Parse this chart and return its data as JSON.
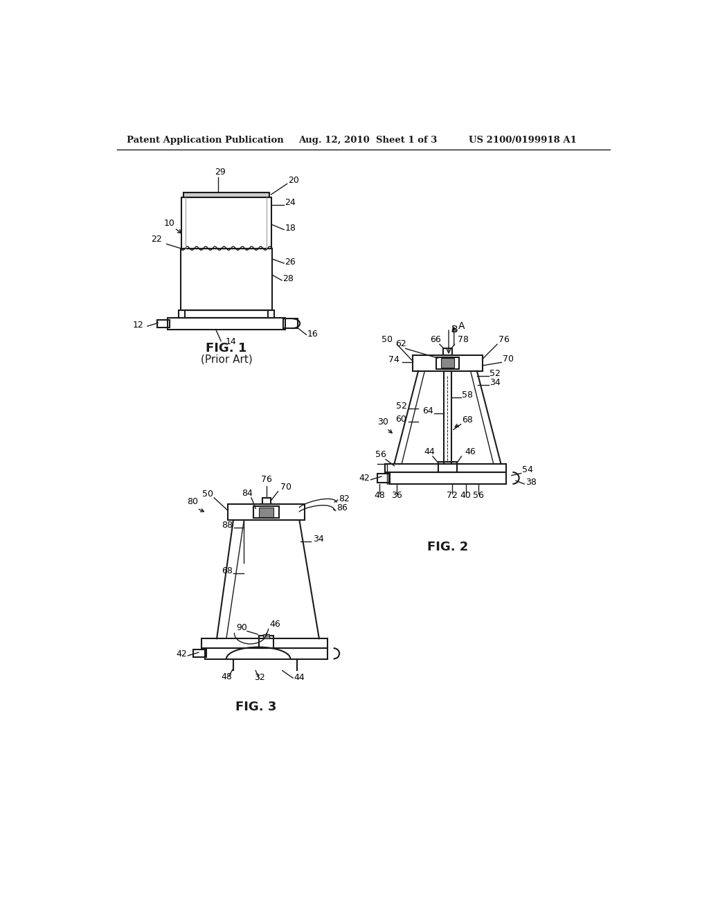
{
  "bg_color": "#ffffff",
  "header_left": "Patent Application Publication",
  "header_mid": "Aug. 12, 2010  Sheet 1 of 3",
  "header_right": "US 2100/0199918 A1",
  "fig1_caption": "FIG. 1",
  "fig1_sub": "(Prior Art)",
  "fig2_caption": "FIG. 2",
  "fig3_caption": "FIG. 3"
}
